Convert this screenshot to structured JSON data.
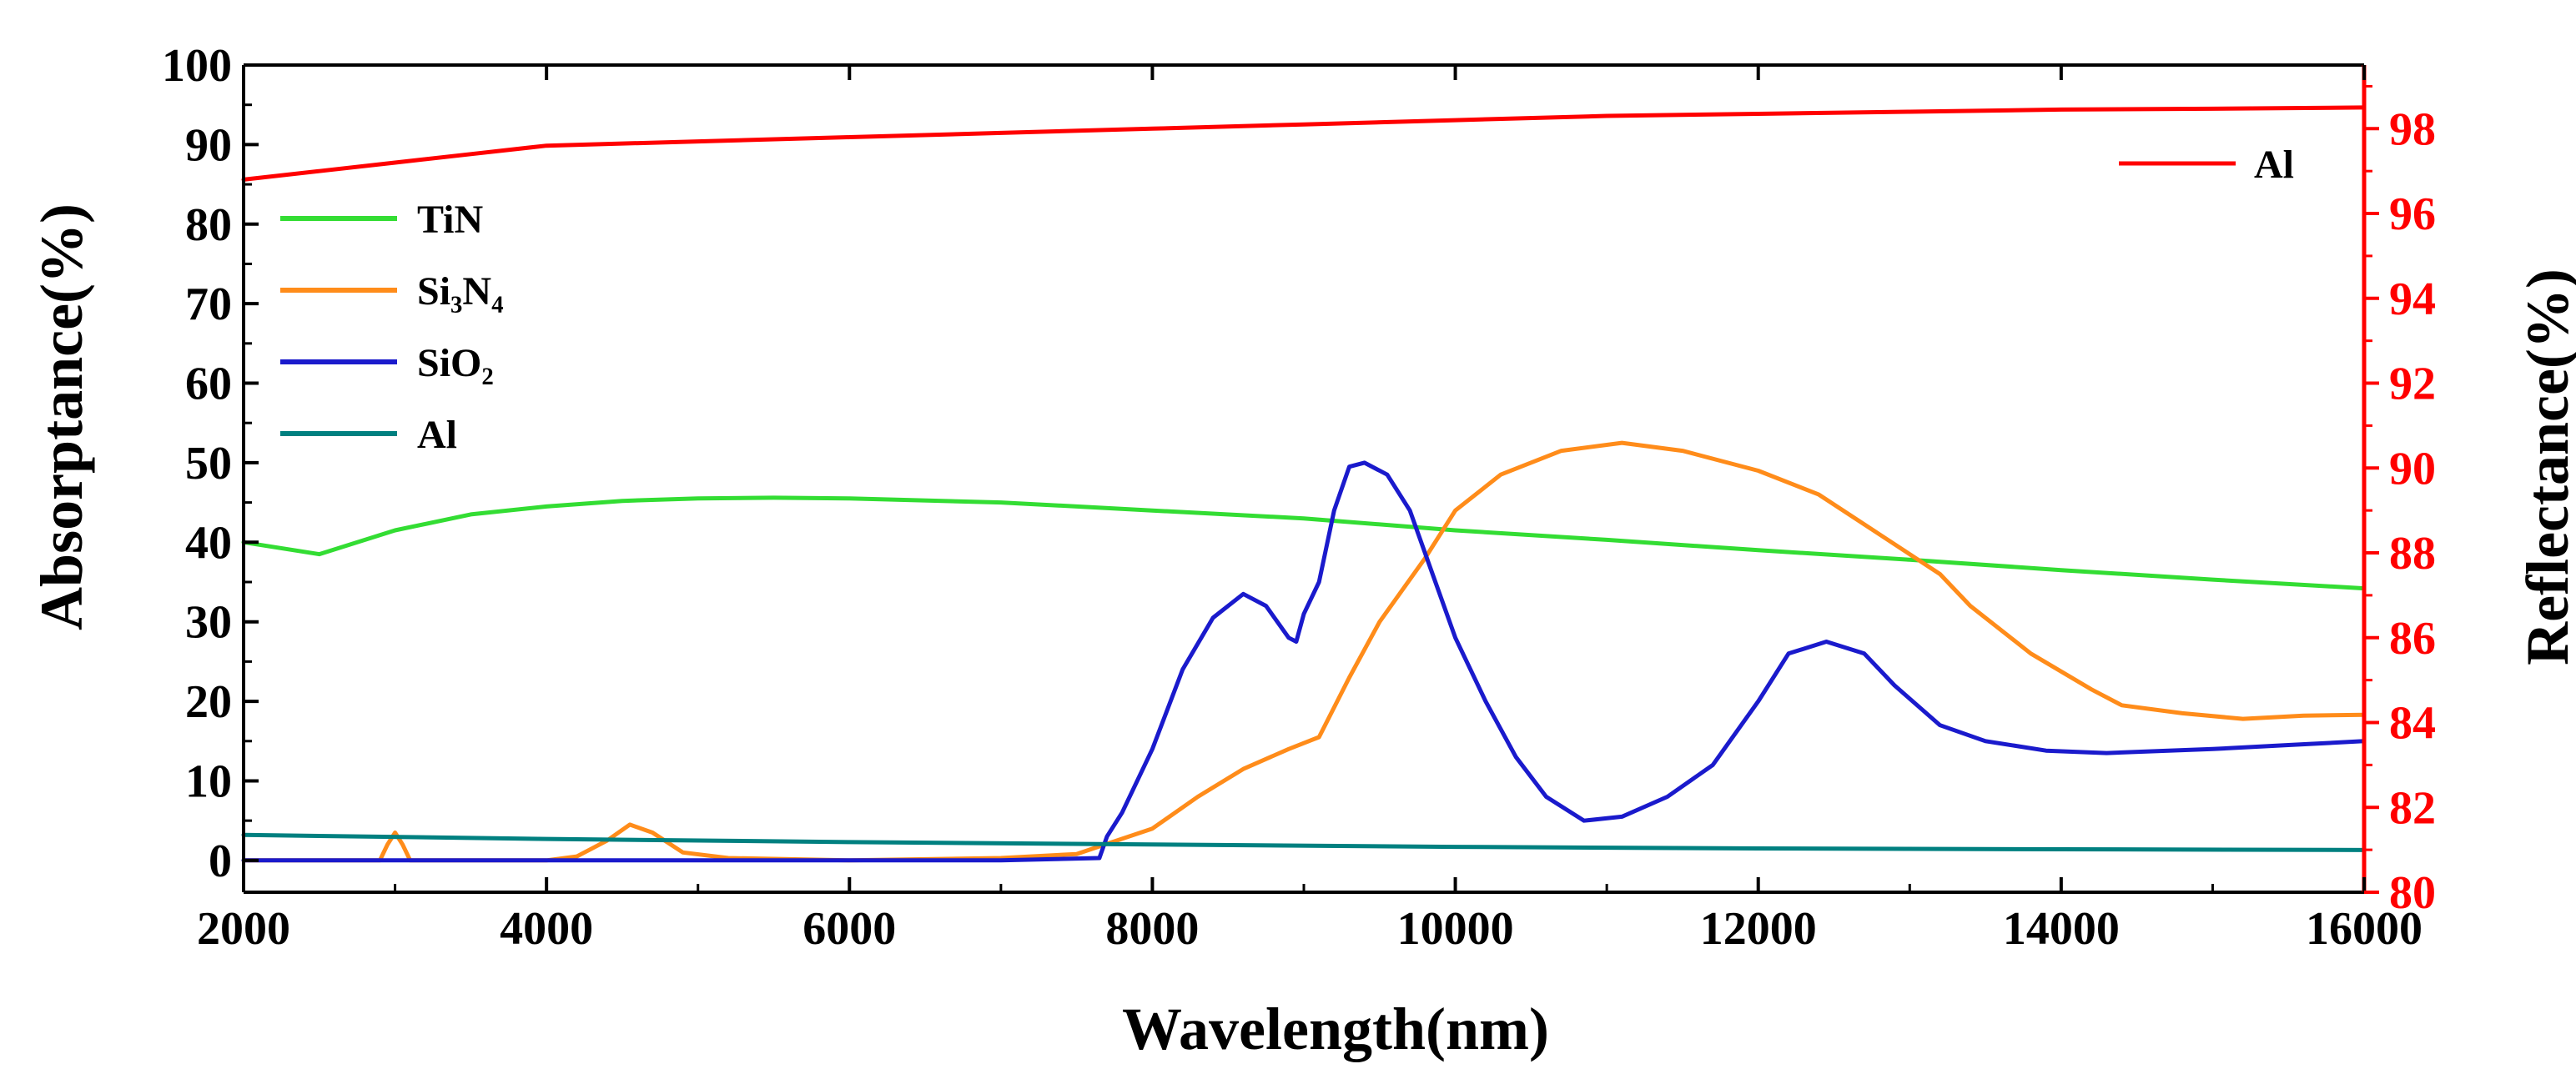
{
  "chart_data": {
    "type": "line",
    "title": "",
    "xlabel": "Wavelength(nm)",
    "ylabel_left": "Absorptance(%)",
    "ylabel_right": "Reflectance(%)",
    "xlim": [
      2000,
      16000
    ],
    "ylim_left": [
      -4,
      100
    ],
    "ylim_right": [
      80,
      99.5
    ],
    "xticks": [
      "2000",
      "4000",
      "6000",
      "8000",
      "10000",
      "12000",
      "14000",
      "16000"
    ],
    "yticks_left": [
      "0",
      "10",
      "20",
      "30",
      "40",
      "50",
      "60",
      "70",
      "80",
      "90",
      "100"
    ],
    "yticks_right": [
      "80",
      "82",
      "84",
      "86",
      "88",
      "90",
      "92",
      "94",
      "96",
      "98"
    ],
    "grid": false,
    "right_axis_color": "#ff0000",
    "left_legend": {
      "placement": "upper-left",
      "entries": [
        {
          "label": "TiN",
          "color": "#33dd33"
        },
        {
          "label": "Si₃N₄",
          "color": "#ff8c1a"
        },
        {
          "label": "SiO₂",
          "color": "#1a1acc"
        },
        {
          "label": "Al",
          "color": "#008080"
        }
      ]
    },
    "right_legend": {
      "placement": "top-right",
      "entries": [
        {
          "label": "Al",
          "color": "#ff0000"
        }
      ]
    },
    "series": [
      {
        "name": "TiN",
        "axis": "left",
        "color": "#33dd33",
        "x": [
          2000,
          2500,
          3000,
          3500,
          4000,
          4500,
          5000,
          5500,
          6000,
          7000,
          8000,
          9000,
          10000,
          11000,
          12000,
          13000,
          14000,
          15000,
          16000
        ],
        "y": [
          40,
          38.5,
          41.5,
          43.5,
          44.5,
          45.2,
          45.5,
          45.6,
          45.5,
          45,
          44,
          43,
          41.5,
          40.3,
          39,
          37.8,
          36.5,
          35.3,
          34.2
        ]
      },
      {
        "name": "Si₃N₄",
        "axis": "left",
        "color": "#ff8c1a",
        "x": [
          2000,
          2900,
          2950,
          3000,
          3050,
          3100,
          3500,
          4000,
          4200,
          4400,
          4550,
          4700,
          4900,
          5200,
          6000,
          7000,
          7500,
          8000,
          8300,
          8600,
          8900,
          9100,
          9300,
          9500,
          9800,
          10000,
          10300,
          10700,
          11100,
          11500,
          12000,
          12400,
          12800,
          13200,
          13400,
          13800,
          14200,
          14400,
          14800,
          15200,
          15600,
          16000
        ],
        "y": [
          0,
          0,
          2,
          3.5,
          2,
          0,
          0,
          0,
          0.5,
          2.5,
          4.5,
          3.5,
          1,
          0.3,
          0,
          0.3,
          0.8,
          4,
          8,
          11.5,
          14,
          15.5,
          23,
          30,
          38,
          44,
          48.5,
          51.5,
          52.5,
          51.5,
          49,
          46,
          41,
          36,
          32,
          26,
          21.5,
          19.5,
          18.5,
          17.8,
          18.2,
          18.3
        ]
      },
      {
        "name": "SiO₂",
        "axis": "left",
        "color": "#1a1acc",
        "x": [
          2000,
          4000,
          5000,
          6000,
          7000,
          7650,
          7700,
          7800,
          8000,
          8200,
          8400,
          8600,
          8750,
          8900,
          8950,
          9000,
          9100,
          9200,
          9300,
          9400,
          9550,
          9700,
          9850,
          10000,
          10200,
          10400,
          10600,
          10850,
          11100,
          11400,
          11700,
          12000,
          12200,
          12450,
          12700,
          12900,
          13200,
          13500,
          13900,
          14300,
          15000,
          15500,
          16000
        ],
        "y": [
          0,
          0,
          0,
          0,
          0,
          0.3,
          3,
          6,
          14,
          24,
          30.5,
          33.5,
          32,
          28,
          27.5,
          31,
          35,
          44,
          49.5,
          50,
          48.5,
          44,
          36,
          28,
          20,
          13,
          8,
          5,
          5.5,
          8,
          12,
          20,
          26,
          27.5,
          26,
          22,
          17,
          15,
          13.8,
          13.5,
          14,
          14.5,
          15
        ]
      },
      {
        "name": "Al",
        "axis": "left",
        "color": "#008080",
        "x": [
          2000,
          4000,
          6000,
          8000,
          10000,
          12000,
          14000,
          16000
        ],
        "y": [
          3.2,
          2.7,
          2.3,
          2,
          1.7,
          1.5,
          1.4,
          1.3
        ]
      },
      {
        "name": "Al",
        "axis": "right",
        "color": "#ff0000",
        "x": [
          2000,
          2500,
          3000,
          3500,
          4000,
          5000,
          6000,
          7000,
          8000,
          9000,
          10000,
          11000,
          12000,
          13000,
          14000,
          15000,
          16000
        ],
        "y": [
          96.8,
          97,
          97.2,
          97.4,
          97.6,
          97.7,
          97.8,
          97.9,
          98,
          98.1,
          98.2,
          98.3,
          98.35,
          98.4,
          98.45,
          98.47,
          98.5
        ]
      }
    ]
  }
}
